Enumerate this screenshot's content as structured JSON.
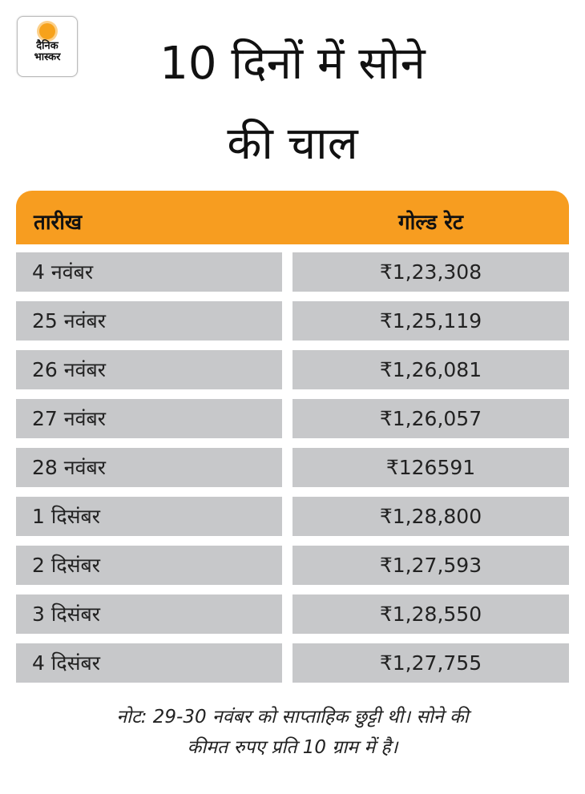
{
  "logo": {
    "line1": "दैनिक",
    "line2": "भास्कर",
    "brand_color": "#f7a21b"
  },
  "title": {
    "line1": "10 दिनों में सोने",
    "line2": "की चाल"
  },
  "table": {
    "header_color": "#f79d20",
    "cell_color": "#c7c8ca",
    "columns": [
      "तारीख",
      "गोल्ड रेट"
    ],
    "rows": [
      {
        "date": "4 नवंबर",
        "rate": "₹1,23,308"
      },
      {
        "date": "25 नवंबर",
        "rate": "₹1,25,119"
      },
      {
        "date": "26 नवंबर",
        "rate": "₹1,26,081"
      },
      {
        "date": "27 नवंबर",
        "rate": "₹1,26,057"
      },
      {
        "date": "28 नवंबर",
        "rate": "₹126591"
      },
      {
        "date": "1 दिसंबर",
        "rate": "₹1,28,800"
      },
      {
        "date": "2 दिसंबर",
        "rate": "₹1,27,593"
      },
      {
        "date": "3 दिसंबर",
        "rate": "₹1,28,550"
      },
      {
        "date": "4 दिसंबर",
        "rate": "₹1,27,755"
      }
    ]
  },
  "note": {
    "line1": "नोट: 29-30 नवंबर को साप्ताहिक छुट्टी थी। सोने की",
    "line2": "कीमत रुपए प्रति 10 ग्राम में है।"
  }
}
